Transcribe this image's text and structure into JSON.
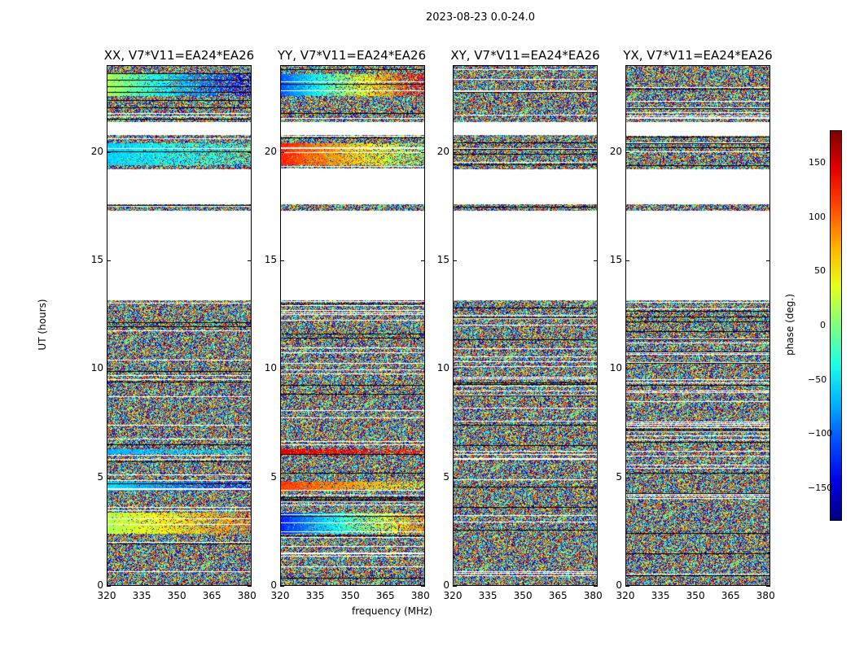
{
  "chart_data": {
    "type": "heatmap",
    "title": "2023-08-23 0.0-24.0",
    "xlabel": "frequency (MHz)",
    "ylabel": "UT (hours)",
    "xlim": [
      320,
      382
    ],
    "ylim": [
      0,
      24
    ],
    "xticks": [
      "320",
      "335",
      "350",
      "365",
      "380"
    ],
    "yticks": [
      "0",
      "5",
      "10",
      "15",
      "20"
    ],
    "panels": [
      {
        "title": "XX, V7*V11=EA24*EA26",
        "polarization": "XX"
      },
      {
        "title": "YY, V7*V11=EA24*EA26",
        "polarization": "YY"
      },
      {
        "title": "XY, V7*V11=EA24*EA26",
        "polarization": "XY"
      },
      {
        "title": "YX, V7*V11=EA24*EA26",
        "polarization": "YX"
      }
    ],
    "colorbar": {
      "label": "phase (deg.)",
      "range": [
        -180,
        180
      ],
      "ticks": [
        "150",
        "100",
        "50",
        "0",
        "−50",
        "−100",
        "−150"
      ],
      "cmap": "jet"
    },
    "empty_ut_ranges_hours": [
      [
        13.2,
        17.3
      ],
      [
        17.6,
        19.2
      ],
      [
        20.8,
        21.4
      ]
    ]
  }
}
